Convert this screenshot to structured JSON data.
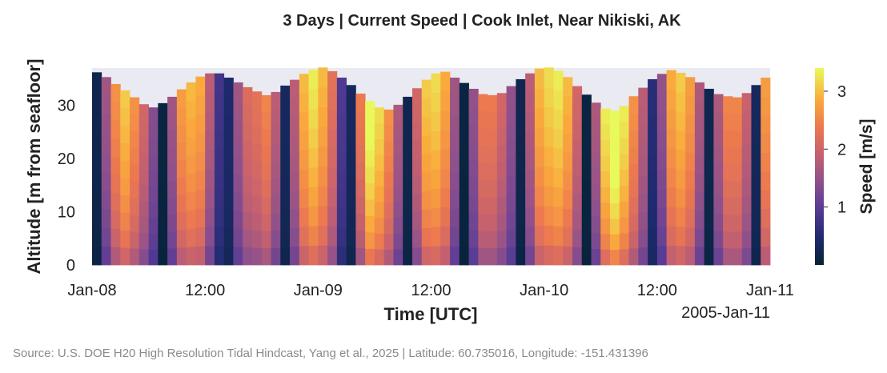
{
  "chart_data": {
    "type": "heatmap",
    "title": "3 Days | Current Speed | Cook Inlet, Near Nikiski, AK",
    "xlabel": "Time [UTC]",
    "ylabel": "Altitude [m from seafloor]",
    "colorbar_label": "Speed [m/s]",
    "x_tick_labels": [
      "Jan-08",
      "12:00",
      "Jan-09",
      "12:00",
      "Jan-10",
      "12:00",
      "Jan-11"
    ],
    "x_offset_label": "2005-Jan-11",
    "x_range_hours": [
      0,
      72
    ],
    "y_ticks": [
      0,
      10,
      20,
      30
    ],
    "ylim": [
      0,
      37
    ],
    "colorbar_ticks": [
      1,
      2,
      3
    ],
    "colorbar_range": [
      0,
      3.4
    ],
    "colormap": "thermal",
    "layers": 10,
    "time_step_hours": 1,
    "surface_altitude_m": [
      36.2,
      35.3,
      34.0,
      32.8,
      31.5,
      30.2,
      29.6,
      30.4,
      31.6,
      33.0,
      34.3,
      35.4,
      36.0,
      36.0,
      35.2,
      34.3,
      33.4,
      32.6,
      31.9,
      32.5,
      33.7,
      34.8,
      35.9,
      36.7,
      37.1,
      36.4,
      35.2,
      33.8,
      32.2,
      30.8,
      29.6,
      29.2,
      30.1,
      31.6,
      33.2,
      34.8,
      36.0,
      36.3,
      35.2,
      34.2,
      33.1,
      32.1,
      31.9,
      32.3,
      33.6,
      34.9,
      36.0,
      36.9,
      37.1,
      36.5,
      35.3,
      33.6,
      32.0,
      30.5,
      29.4,
      29.0,
      29.9,
      31.7,
      33.3,
      34.9,
      35.9,
      36.6,
      36.1,
      35.3,
      34.3,
      33.1,
      32.1,
      31.7,
      31.5,
      32.3,
      33.8,
      35.2
    ],
    "depth_avg_speed_m_s": [
      0.2,
      1.4,
      2.3,
      2.7,
      2.3,
      1.8,
      1.2,
      0.1,
      1.4,
      2.4,
      2.6,
      2.5,
      1.6,
      0.7,
      0.4,
      1.4,
      1.9,
      2.0,
      2.2,
      1.6,
      0.3,
      1.6,
      2.6,
      2.9,
      2.6,
      2.0,
      0.8,
      0.3,
      2.1,
      3.1,
      2.8,
      2.3,
      1.5,
      0.2,
      1.8,
      2.7,
      2.8,
      2.5,
      1.4,
      0.1,
      1.3,
      2.1,
      2.1,
      1.8,
      1.3,
      0.2,
      1.6,
      2.6,
      2.8,
      2.9,
      2.6,
      1.8,
      0.1,
      1.5,
      2.9,
      3.3,
      2.9,
      2.3,
      1.6,
      0.5,
      1.3,
      2.5,
      2.7,
      2.4,
      1.5,
      0.2,
      1.5,
      2.2,
      2.2,
      1.7,
      0.3,
      2.4
    ]
  },
  "source_text": "Source: U.S. DOE H20 High Resolution Tidal Hindcast, Yang et al., 2025  |  Latitude: 60.735016, Longitude: -151.431396",
  "colors": {
    "plot_background": "#eaeaf2",
    "text": "#222222",
    "source_text": "#8a8a8a"
  }
}
